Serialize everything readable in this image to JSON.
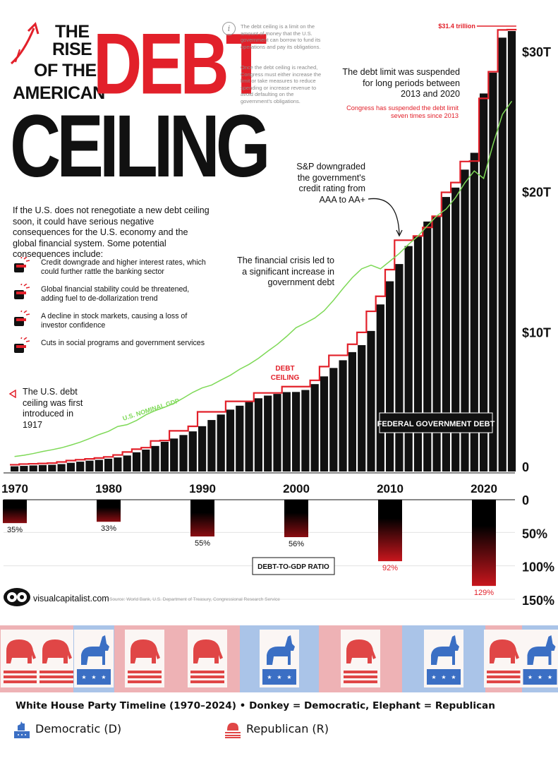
{
  "title": {
    "line1": "THE",
    "line2": "RISE",
    "line3": "OF THE",
    "line4": "AMERICAN",
    "debt": "DEBT",
    "ceiling": "CEILING"
  },
  "info": {
    "icon": "i",
    "p1": "The debt ceiling is a limit on the amount of money that the U.S. government can borrow to fund its operations and pay its obligations.",
    "p2": "Once the debt ceiling is reached, Congress must either increase the limit or take measures to reduce spending or increase revenue to avoid defaulting on the government's obligations."
  },
  "intro": "If the U.S. does not renegotiate a new debt ceiling soon, it could have serious negative consequences for the U.S. economy and the global financial system. Some potential consequences include:",
  "consequences": [
    "Credit downgrade and higher interest rates, which could further rattle the banking sector",
    "Global financial stability could be threatened, adding fuel to de-dollarization trend",
    "A decline in stock markets, causing a loss of investor confidence",
    "Cuts in social programs and government services"
  ],
  "annotations": {
    "first_introduced": "The U.S. debt ceiling was first introduced in 1917",
    "financial_crisis": "The financial crisis led to a significant increase in government debt",
    "sp_downgrade": "S&P downgraded the government's credit rating from AAA to AA+",
    "suspended": "The debt limit was suspended for long periods between 2013 and 2020",
    "suspended_red": "Congress has suspended the debt limit seven times since 2013",
    "peak_label": "$31.4 trillion"
  },
  "chart_labels": {
    "gdp_line": "U.S. NOMINAL GDP",
    "debt_ceiling": "DEBT CEILING",
    "federal_debt": "FEDERAL GOVERNMENT DEBT",
    "ratio_label": "DEBT-TO-GDP RATIO"
  },
  "colors": {
    "bar": "#111111",
    "ceiling": "#e2202a",
    "gdp": "#7ed957",
    "ratio_bottom": "#8b0d12",
    "dem": "#3b6fc4",
    "rep": "#e04646",
    "dem_bg": "#aac4e8",
    "rep_bg": "#eeb2b5"
  },
  "chart_data": [
    {
      "type": "bar",
      "title": "FEDERAL GOVERNMENT DEBT",
      "y_unit": "trillion USD",
      "ylim": [
        0,
        31.4
      ],
      "y_ticks": [
        "0",
        "$10T",
        "$20T",
        "$30T"
      ],
      "x_ticks": [
        "1970",
        "1980",
        "1990",
        "2000",
        "2010",
        "2020"
      ],
      "x": [
        1970,
        1971,
        1972,
        1973,
        1974,
        1975,
        1976,
        1977,
        1978,
        1979,
        1980,
        1981,
        1982,
        1983,
        1984,
        1985,
        1986,
        1987,
        1988,
        1989,
        1990,
        1991,
        1992,
        1993,
        1994,
        1995,
        1996,
        1997,
        1998,
        1999,
        2000,
        2001,
        2002,
        2003,
        2004,
        2005,
        2006,
        2007,
        2008,
        2009,
        2010,
        2011,
        2012,
        2013,
        2014,
        2015,
        2016,
        2017,
        2018,
        2019,
        2020,
        2021,
        2022,
        2023
      ],
      "series": [
        {
          "name": "FEDERAL GOVERNMENT DEBT",
          "values": [
            0.37,
            0.4,
            0.43,
            0.46,
            0.48,
            0.53,
            0.62,
            0.7,
            0.77,
            0.83,
            0.91,
            1.0,
            1.14,
            1.37,
            1.56,
            1.82,
            2.12,
            2.35,
            2.6,
            2.86,
            3.23,
            3.67,
            4.06,
            4.41,
            4.69,
            4.97,
            5.22,
            5.41,
            5.53,
            5.66,
            5.67,
            5.81,
            6.23,
            6.78,
            7.38,
            7.93,
            8.51,
            9.01,
            10.02,
            11.91,
            13.56,
            14.79,
            16.07,
            16.74,
            17.82,
            18.15,
            19.57,
            20.24,
            21.52,
            22.72,
            26.95,
            28.43,
            30.93,
            31.4
          ]
        },
        {
          "name": "DEBT CEILING",
          "values": [
            0.38,
            0.43,
            0.45,
            0.47,
            0.5,
            0.58,
            0.68,
            0.74,
            0.8,
            0.86,
            0.94,
            1.08,
            1.29,
            1.49,
            1.6,
            2.08,
            2.11,
            2.8,
            2.8,
            3.12,
            4.15,
            4.15,
            4.15,
            4.9,
            4.9,
            4.9,
            5.5,
            5.5,
            5.5,
            5.95,
            5.95,
            5.95,
            6.4,
            7.38,
            8.18,
            8.18,
            8.97,
            9.82,
            11.32,
            12.39,
            14.29,
            16.39,
            16.39,
            16.69,
            17.3,
            18.1,
            19.8,
            20.5,
            22.0,
            22.03,
            26.5,
            28.4,
            31.38,
            31.4
          ]
        },
        {
          "name": "U.S. NOMINAL GDP",
          "values": [
            1.07,
            1.16,
            1.28,
            1.43,
            1.55,
            1.69,
            1.88,
            2.09,
            2.35,
            2.63,
            2.86,
            3.21,
            3.34,
            3.64,
            4.04,
            4.34,
            4.58,
            4.86,
            5.24,
            5.64,
            5.96,
            6.16,
            6.52,
            6.86,
            7.29,
            7.64,
            8.07,
            8.58,
            9.06,
            9.63,
            10.25,
            10.58,
            10.94,
            11.46,
            12.21,
            13.04,
            13.82,
            14.45,
            14.71,
            14.45,
            14.99,
            15.54,
            16.2,
            16.78,
            17.52,
            18.22,
            18.71,
            19.52,
            20.58,
            21.43,
            20.89,
            23.32,
            25.46,
            26.4
          ]
        }
      ]
    },
    {
      "type": "bar",
      "title": "DEBT-TO-GDP RATIO",
      "y_unit": "percent",
      "ylim": [
        0,
        150
      ],
      "y_ticks": [
        "0",
        "50%",
        "100%",
        "150%"
      ],
      "x": [
        1970,
        1980,
        1990,
        2000,
        2010,
        2020
      ],
      "series": [
        {
          "name": "DEBT-TO-GDP RATIO",
          "values": [
            35,
            33,
            55,
            56,
            92,
            129
          ]
        }
      ],
      "value_labels": [
        "35%",
        "33%",
        "55%",
        "56%",
        "92%",
        "129%"
      ]
    }
  ],
  "brand": {
    "name": "visualcapitalist.com",
    "source": "Source: World Bank, U.S. Department of Treasury, Congressional Research Service"
  },
  "timeline": {
    "caption": "White House Party Timeline (1970–2024) • Donkey = Democratic, Elephant = Republican",
    "segments": [
      "R",
      "R",
      "D",
      "R",
      "R",
      "D",
      "R",
      "D",
      "R",
      "D"
    ],
    "legend_dem": "Democratic (D)",
    "legend_rep": "Republican (R)"
  }
}
